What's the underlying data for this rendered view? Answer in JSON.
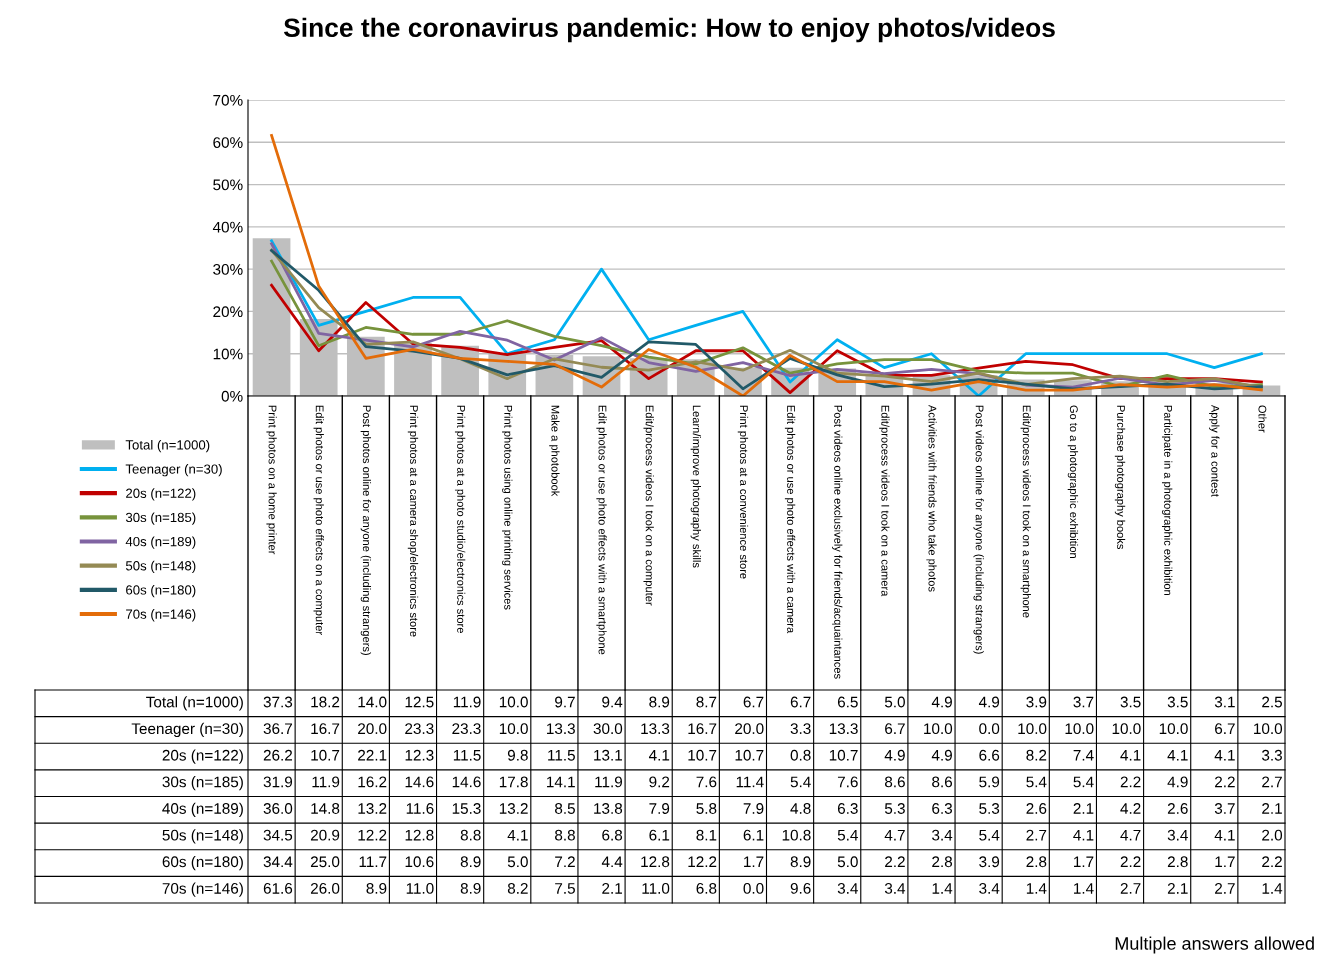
{
  "chart_data": {
    "type": "line",
    "title": "Since the coronavirus pandemic: How to enjoy photos/videos",
    "categories": [
      "Print photos on a home printer",
      "Edit photos or use photo effects on a computer",
      "Post photos online for anyone (including strangers)",
      "Print photos at a camera shop/electronics store",
      "Print photos at a photo studio/electronics store",
      "Print photos using online printing services",
      "Make a photobook",
      "Edit photos or use photo effects with a smartphone",
      "Edit/process videos I took on a computer",
      "Learn/improve photography skills",
      "Print photos at a convenience store",
      "Edit photos or use photo effects with a camera",
      "Post videos online exclusively for friends/acquaintances",
      "Edit/process videos I took on a camera",
      "Activities with friends who take photos",
      "Post videos online for anyone (including strangers)",
      "Edit/process videos I took on a smartphone",
      "Go to a photographic exhibition",
      "Purchase photography books",
      "Participate in a photographic exhibition",
      "Apply for a contest",
      "Other"
    ],
    "series": [
      {
        "name": "Total (n=1000)",
        "type": "bar",
        "color": "#bfbfbf",
        "values": [
          37.3,
          18.2,
          14.0,
          12.5,
          11.9,
          10.0,
          9.7,
          9.4,
          8.9,
          8.7,
          6.7,
          6.7,
          6.5,
          5.0,
          4.9,
          4.9,
          3.9,
          3.7,
          3.5,
          3.5,
          3.1,
          2.5
        ],
        "value_labels": [
          "37.3",
          "18.2",
          "14.0",
          "12.5",
          "11.9",
          "10.0",
          "9.7",
          "9.4",
          "8.9",
          "8.7",
          "6.7",
          "6.7",
          "6.5",
          "5.0",
          "4.9",
          "4.9",
          "3.9",
          "3.7",
          "3.5",
          "3.5",
          "3.1",
          "2.5"
        ]
      },
      {
        "name": "Teenager (n=30)",
        "color": "#00b0f0",
        "values": [
          36.7,
          16.7,
          20.0,
          23.3,
          23.3,
          10.0,
          13.3,
          30.0,
          13.3,
          16.7,
          20.0,
          3.3,
          13.3,
          6.7,
          10.0,
          0.0,
          10.0,
          10.0,
          10.0,
          10.0,
          6.7,
          10.0
        ],
        "value_labels": [
          "36.7",
          "16.7",
          "20.0",
          "23.3",
          "23.3",
          "10.0",
          "13.3",
          "30.0",
          "13.3",
          "16.7",
          "20.0",
          "3.3",
          "13.3",
          "6.7",
          "10.0",
          "0.0",
          "10.0",
          "10.0",
          "10.0",
          "10.0",
          "6.7",
          "10.0"
        ]
      },
      {
        "name": "20s (n=122)",
        "color": "#c00000",
        "values": [
          26.2,
          10.7,
          22.1,
          12.3,
          11.5,
          9.8,
          11.5,
          13.1,
          4.1,
          10.7,
          10.7,
          0.8,
          10.7,
          4.9,
          4.9,
          6.6,
          8.2,
          7.4,
          4.1,
          4.1,
          4.1,
          3.3
        ],
        "value_labels": [
          "26.2",
          "10.7",
          "22.1",
          "12.3",
          "11.5",
          "9.8",
          "11.5",
          "13.1",
          "4.1",
          "10.7",
          "10.7",
          "0.8",
          "10.7",
          "4.9",
          "4.9",
          "6.6",
          "8.2",
          "7.4",
          "4.1",
          "4.1",
          "4.1",
          "3.3"
        ]
      },
      {
        "name": "30s (n=185)",
        "color": "#77933c",
        "values": [
          31.9,
          11.9,
          16.2,
          14.6,
          14.6,
          17.8,
          14.1,
          11.9,
          9.2,
          7.6,
          11.4,
          5.4,
          7.6,
          8.6,
          8.6,
          5.9,
          5.4,
          5.4,
          2.2,
          4.9,
          2.2,
          2.7
        ],
        "value_labels": [
          "31.9",
          "11.9",
          "16.2",
          "14.6",
          "14.6",
          "17.8",
          "14.1",
          "11.9",
          "9.2",
          "7.6",
          "11.4",
          "5.4",
          "7.6",
          "8.6",
          "8.6",
          "5.9",
          "5.4",
          "5.4",
          "2.2",
          "4.9",
          "2.2",
          "2.7"
        ]
      },
      {
        "name": "40s (n=189)",
        "color": "#8064a2",
        "values": [
          36.0,
          14.8,
          13.2,
          11.6,
          15.3,
          13.2,
          8.5,
          13.8,
          7.9,
          5.8,
          7.9,
          4.8,
          6.3,
          5.3,
          6.3,
          5.3,
          2.6,
          2.1,
          4.2,
          2.6,
          3.7,
          2.1
        ],
        "value_labels": [
          "36.0",
          "14.8",
          "13.2",
          "11.6",
          "15.3",
          "13.2",
          "8.5",
          "13.8",
          "7.9",
          "5.8",
          "7.9",
          "4.8",
          "6.3",
          "5.3",
          "6.3",
          "5.3",
          "2.6",
          "2.1",
          "4.2",
          "2.6",
          "3.7",
          "2.1"
        ]
      },
      {
        "name": "50s (n=148)",
        "color": "#948a54",
        "values": [
          34.5,
          20.9,
          12.2,
          12.8,
          8.8,
          4.1,
          8.8,
          6.8,
          6.1,
          8.1,
          6.1,
          10.8,
          5.4,
          4.7,
          3.4,
          5.4,
          2.7,
          4.1,
          4.7,
          3.4,
          4.1,
          2.0
        ],
        "value_labels": [
          "34.5",
          "20.9",
          "12.2",
          "12.8",
          "8.8",
          "4.1",
          "8.8",
          "6.8",
          "6.1",
          "8.1",
          "6.1",
          "10.8",
          "5.4",
          "4.7",
          "3.4",
          "5.4",
          "2.7",
          "4.1",
          "4.7",
          "3.4",
          "4.1",
          "2.0"
        ]
      },
      {
        "name": "60s (n=180)",
        "color": "#215968",
        "values": [
          34.4,
          25.0,
          11.7,
          10.6,
          8.9,
          5.0,
          7.2,
          4.4,
          12.8,
          12.2,
          1.7,
          8.9,
          5.0,
          2.2,
          2.8,
          3.9,
          2.8,
          1.7,
          2.2,
          2.8,
          1.7,
          2.2
        ],
        "value_labels": [
          "34.4",
          "25.0",
          "11.7",
          "10.6",
          "8.9",
          "5.0",
          "7.2",
          "4.4",
          "12.8",
          "12.2",
          "1.7",
          "8.9",
          "5.0",
          "2.2",
          "2.8",
          "3.9",
          "2.8",
          "1.7",
          "2.2",
          "2.8",
          "1.7",
          "2.2"
        ]
      },
      {
        "name": "70s (n=146)",
        "color": "#e36c09",
        "values": [
          61.6,
          26.0,
          8.9,
          11.0,
          8.9,
          8.2,
          7.5,
          2.1,
          11.0,
          6.8,
          0.0,
          9.6,
          3.4,
          3.4,
          1.4,
          3.4,
          1.4,
          1.4,
          2.7,
          2.1,
          2.7,
          1.4
        ],
        "value_labels": [
          "61.6",
          "26.0",
          "8.9",
          "11.0",
          "8.9",
          "8.2",
          "7.5",
          "2.1",
          "11.0",
          "6.8",
          "0.0",
          "9.6",
          "3.4",
          "3.4",
          "1.4",
          "3.4",
          "1.4",
          "1.4",
          "2.7",
          "2.1",
          "2.7",
          "1.4"
        ]
      }
    ],
    "ylim": [
      0,
      70
    ],
    "yticks": [
      {
        "value": 0,
        "label": "0%"
      },
      {
        "value": 10,
        "label": "10%"
      },
      {
        "value": 20,
        "label": "20%"
      },
      {
        "value": 30,
        "label": "30%"
      },
      {
        "value": 40,
        "label": "40%"
      },
      {
        "value": 50,
        "label": "50%"
      },
      {
        "value": 60,
        "label": "60%"
      },
      {
        "value": 70,
        "label": "70%"
      }
    ],
    "grid": "y",
    "legend": "left",
    "annotations": [
      "Multiple answers allowed"
    ]
  }
}
